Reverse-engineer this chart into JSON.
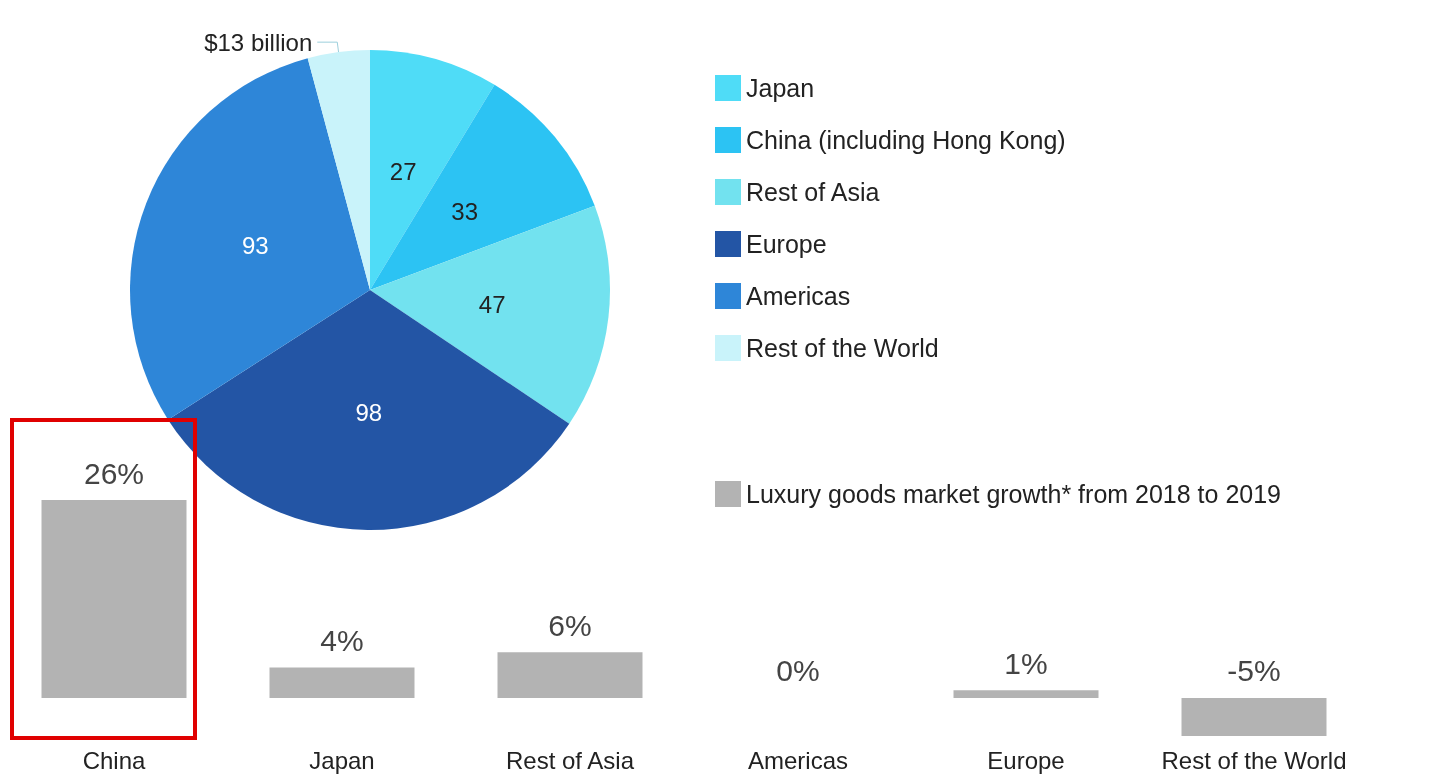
{
  "chart_data": [
    {
      "type": "pie",
      "categories": [
        "Japan",
        "China (including Hong Kong)",
        "Rest of Asia",
        "Europe",
        "Americas",
        "Rest of the World"
      ],
      "values": [
        27,
        33,
        47,
        98,
        93,
        13
      ],
      "colors": [
        "#4fdcf7",
        "#2cc3f3",
        "#72e2ef",
        "#2355a5",
        "#2e86d8",
        "#c9f3fa"
      ],
      "value_labels": [
        "27",
        "33",
        "47",
        "98",
        "93",
        "$13 billion"
      ],
      "legend": "right"
    },
    {
      "type": "bar",
      "categories": [
        "China",
        "Japan",
        "Rest of Asia",
        "Americas",
        "Europe",
        "Rest of the World"
      ],
      "series": [
        {
          "name": "Luxury goods market growth* from 2018 to 2019",
          "color": "#b3b3b3",
          "values": [
            26,
            4,
            6,
            0,
            1,
            -5
          ],
          "value_labels": [
            "26%",
            "4%",
            "6%",
            "0%",
            "1%",
            "-5%"
          ]
        }
      ],
      "legend": "top right"
    }
  ]
}
